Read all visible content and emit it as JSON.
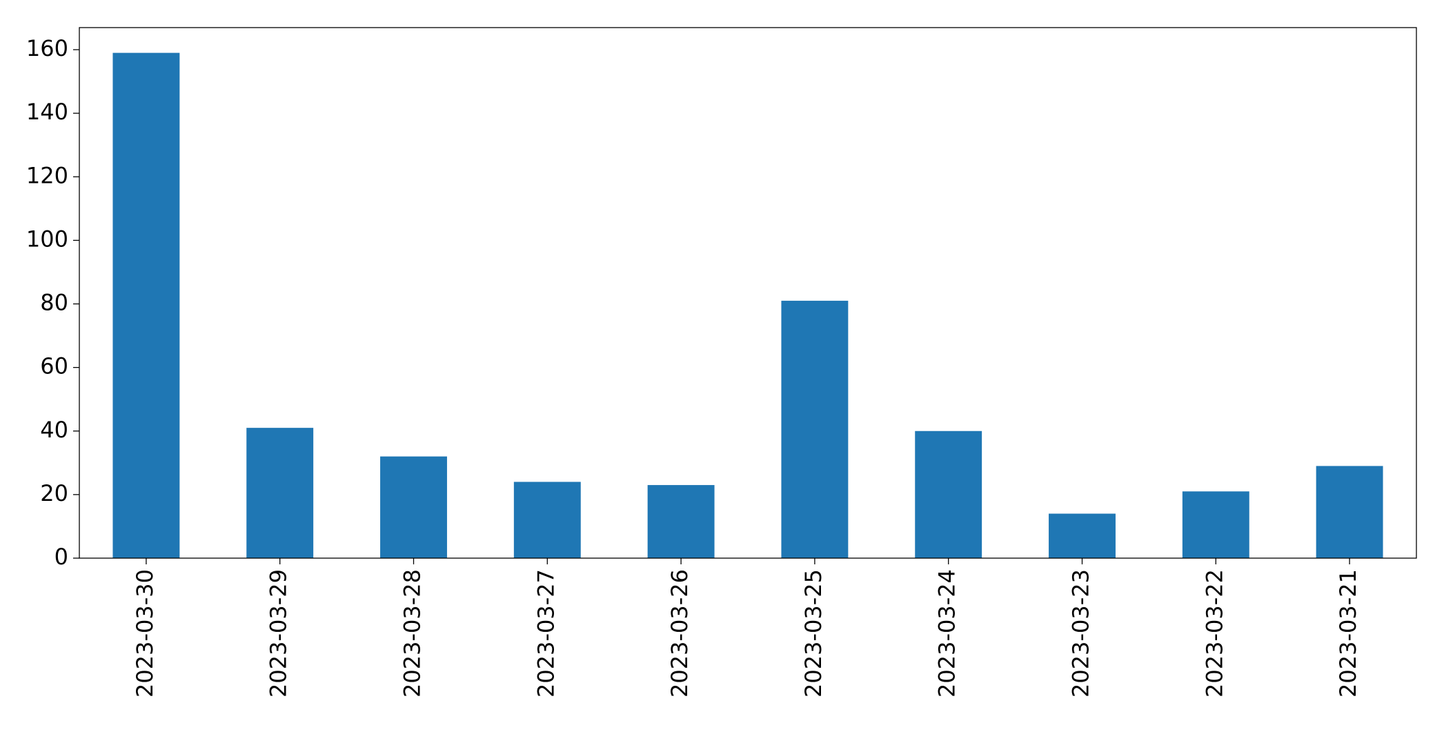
{
  "chart_data": {
    "type": "bar",
    "categories": [
      "2023-03-30",
      "2023-03-29",
      "2023-03-28",
      "2023-03-27",
      "2023-03-26",
      "2023-03-25",
      "2023-03-24",
      "2023-03-23",
      "2023-03-22",
      "2023-03-21"
    ],
    "values": [
      159,
      41,
      32,
      24,
      23,
      81,
      40,
      14,
      21,
      29
    ],
    "color": "#1f77b4",
    "ylim": [
      0,
      166.95
    ],
    "yticks": [
      0,
      20,
      40,
      60,
      80,
      100,
      120,
      140,
      160
    ],
    "grid": false
  }
}
